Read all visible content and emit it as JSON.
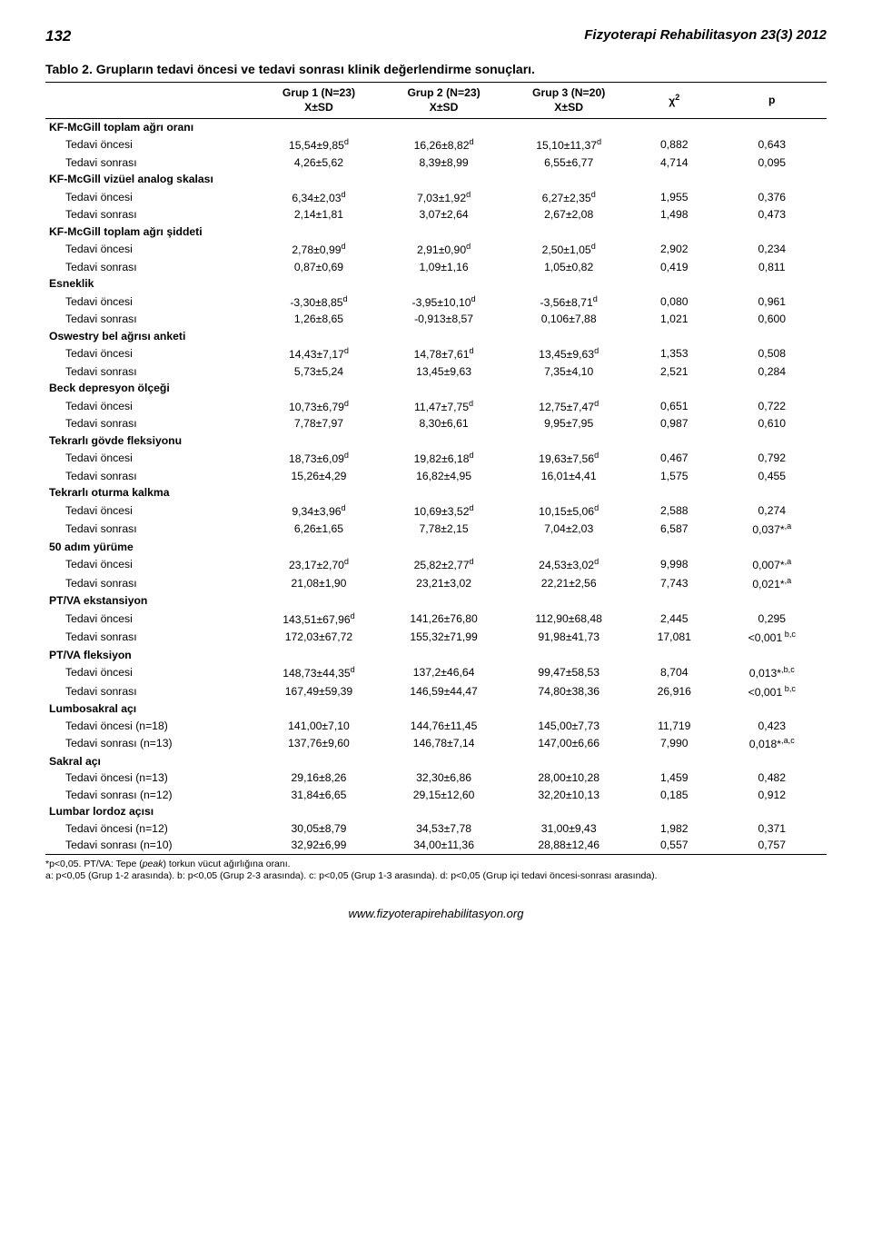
{
  "pageNumber": "132",
  "journal": "Fizyoterapi Rehabilitasyon 23(3) 2012",
  "tableTitle": "Tablo 2. Grupların tedavi öncesi ve tedavi sonrası klinik değerlendirme sonuçları.",
  "columns": {
    "g1_top": "Grup 1 (N=23)",
    "g1_bot": "X±SD",
    "g2_top": "Grup 2 (N=23)",
    "g2_bot": "X±SD",
    "g3_top": "Grup 3 (N=20)",
    "g3_bot": "X±SD",
    "chi": "χ",
    "chi_sup": "2",
    "p": "p"
  },
  "rows": [
    {
      "section": true,
      "label": "KF-McGill toplam ağrı oranı"
    },
    {
      "indent": true,
      "label": "Tedavi öncesi",
      "g1": "15,54±9,85",
      "g1s": "d",
      "g2": "16,26±8,82",
      "g2s": "d",
      "g3": "15,10±11,37",
      "g3s": "d",
      "chi": "0,882",
      "p": "0,643"
    },
    {
      "indent": true,
      "label": "Tedavi sonrası",
      "g1": "4,26±5,62",
      "g2": "8,39±8,99",
      "g3": "6,55±6,77",
      "chi": "4,714",
      "p": "0,095"
    },
    {
      "section": true,
      "label": "KF-McGill vizüel analog skalası"
    },
    {
      "indent": true,
      "label": "Tedavi öncesi",
      "g1": "6,34±2,03",
      "g1s": "d",
      "g2": "7,03±1,92",
      "g2s": "d",
      "g3": "6,27±2,35",
      "g3s": "d",
      "chi": "1,955",
      "p": "0,376"
    },
    {
      "indent": true,
      "label": "Tedavi sonrası",
      "g1": "2,14±1,81",
      "g2": "3,07±2,64",
      "g3": "2,67±2,08",
      "chi": "1,498",
      "p": "0,473"
    },
    {
      "section": true,
      "label": "KF-McGill toplam ağrı şiddeti"
    },
    {
      "indent": true,
      "label": "Tedavi öncesi",
      "g1": "2,78±0,99",
      "g1s": "d",
      "g2": "2,91±0,90",
      "g2s": "d",
      "g3": "2,50±1,05",
      "g3s": "d",
      "chi": "2,902",
      "p": "0,234"
    },
    {
      "indent": true,
      "label": "Tedavi sonrası",
      "g1": "0,87±0,69",
      "g2": "1,09±1,16",
      "g3": "1,05±0,82",
      "chi": "0,419",
      "p": "0,811"
    },
    {
      "section": true,
      "label": "Esneklik"
    },
    {
      "indent": true,
      "label": "Tedavi öncesi",
      "g1": "-3,30±8,85",
      "g1s": "d",
      "g2": "-3,95±10,10",
      "g2s": "d",
      "g3": "-3,56±8,71",
      "g3s": "d",
      "chi": "0,080",
      "p": "0,961"
    },
    {
      "indent": true,
      "label": "Tedavi sonrası",
      "g1": "1,26±8,65",
      "g2": "-0,913±8,57",
      "g3": "0,106±7,88",
      "chi": "1,021",
      "p": "0,600"
    },
    {
      "section": true,
      "label": "Oswestry bel ağrısı anketi"
    },
    {
      "indent": true,
      "label": "Tedavi öncesi",
      "g1": "14,43±7,17",
      "g1s": "d",
      "g2": "14,78±7,61",
      "g2s": "d",
      "g3": "13,45±9,63",
      "g3s": "d",
      "chi": "1,353",
      "p": "0,508"
    },
    {
      "indent": true,
      "label": "Tedavi sonrası",
      "g1": "5,73±5,24",
      "g2": "13,45±9,63",
      "g3": "7,35±4,10",
      "chi": "2,521",
      "p": "0,284"
    },
    {
      "section": true,
      "label": "Beck depresyon ölçeği"
    },
    {
      "indent": true,
      "label": "Tedavi öncesi",
      "g1": "10,73±6,79",
      "g1s": "d",
      "g2": "11,47±7,75",
      "g2s": "d",
      "g3": "12,75±7,47",
      "g3s": "d",
      "chi": "0,651",
      "p": "0,722"
    },
    {
      "indent": true,
      "label": "Tedavi sonrası",
      "g1": "7,78±7,97",
      "g2": "8,30±6,61",
      "g3": "9,95±7,95",
      "chi": "0,987",
      "p": "0,610"
    },
    {
      "section": true,
      "label": "Tekrarlı gövde fleksiyonu"
    },
    {
      "indent": true,
      "label": "Tedavi öncesi",
      "g1": "18,73±6,09",
      "g1s": "d",
      "g2": "19,82±6,18",
      "g2s": "d",
      "g3": "19,63±7,56",
      "g3s": "d",
      "chi": "0,467",
      "p": "0,792"
    },
    {
      "indent": true,
      "label": "Tedavi sonrası",
      "g1": "15,26±4,29",
      "g2": "16,82±4,95",
      "g3": "16,01±4,41",
      "chi": "1,575",
      "p": "0,455"
    },
    {
      "section": true,
      "label": "Tekrarlı oturma kalkma"
    },
    {
      "indent": true,
      "label": "Tedavi öncesi",
      "g1": "9,34±3,96",
      "g1s": "d",
      "g2": "10,69±3,52",
      "g2s": "d",
      "g3": "10,15±5,06",
      "g3s": "d",
      "chi": "2,588",
      "p": "0,274"
    },
    {
      "indent": true,
      "label": "Tedavi sonrası",
      "g1": "6,26±1,65",
      "g2": "7,78±2,15",
      "g3": "7,04±2,03",
      "chi": "6,587",
      "p": "0,037*",
      "ps": ",a"
    },
    {
      "section": true,
      "label": "50 adım yürüme"
    },
    {
      "indent": true,
      "label": "Tedavi öncesi",
      "g1": "23,17±2,70",
      "g1s": "d",
      "g2": "25,82±2,77",
      "g2s": "d",
      "g3": "24,53±3,02",
      "g3s": "d",
      "chi": "9,998",
      "p": "0,007*",
      "ps": ",a"
    },
    {
      "indent": true,
      "label": "Tedavi sonrası",
      "g1": "21,08±1,90",
      "g2": "23,21±3,02",
      "g3": "22,21±2,56",
      "chi": "7,743",
      "p": "0,021*",
      "ps": ",a"
    },
    {
      "section": true,
      "label": "PT/VA ekstansiyon"
    },
    {
      "indent": true,
      "label": "Tedavi öncesi",
      "g1": "143,51±67,96",
      "g1s": "d",
      "g2": "141,26±76,80",
      "g3": "112,90±68,48",
      "chi": "2,445",
      "p": "0,295"
    },
    {
      "indent": true,
      "label": "Tedavi sonrası",
      "g1": "172,03±67,72",
      "g2": "155,32±71,99",
      "g3": "91,98±41,73",
      "chi": "17,081",
      "p": "<0,001",
      "ps": " b,c"
    },
    {
      "section": true,
      "label": "PT/VA fleksiyon"
    },
    {
      "indent": true,
      "label": "Tedavi öncesi",
      "g1": "148,73±44,35",
      "g1s": "d",
      "g2": "137,2±46,64",
      "g3": "99,47±58,53",
      "chi": "8,704",
      "p": "0,013*",
      "ps": ",b,c"
    },
    {
      "indent": true,
      "label": "Tedavi sonrası",
      "g1": "167,49±59,39",
      "g2": "146,59±44,47",
      "g3": "74,80±38,36",
      "chi": "26,916",
      "p": "<0,001",
      "ps": " b,c"
    },
    {
      "section": true,
      "label": "Lumbosakral açı"
    },
    {
      "indent": true,
      "label": "Tedavi öncesi (n=18)",
      "g1": "141,00±7,10",
      "g2": "144,76±11,45",
      "g3": "145,00±7,73",
      "chi": "11,719",
      "p": "0,423"
    },
    {
      "indent": true,
      "label": "Tedavi sonrası (n=13)",
      "g1": "137,76±9,60",
      "g2": "146,78±7,14",
      "g3": "147,00±6,66",
      "chi": "7,990",
      "p": "0,018*",
      "ps": ",a,c"
    },
    {
      "section": true,
      "label": "Sakral açı"
    },
    {
      "indent": true,
      "label": "Tedavi öncesi (n=13)",
      "g1": "29,16±8,26",
      "g2": "32,30±6,86",
      "g3": "28,00±10,28",
      "chi": "1,459",
      "p": "0,482"
    },
    {
      "indent": true,
      "label": "Tedavi sonrası (n=12)",
      "g1": "31,84±6,65",
      "g2": "29,15±12,60",
      "g3": "32,20±10,13",
      "chi": "0,185",
      "p": "0,912"
    },
    {
      "section": true,
      "label": "Lumbar lordoz açısı"
    },
    {
      "indent": true,
      "label": "Tedavi öncesi (n=12)",
      "g1": "30,05±8,79",
      "g2": "34,53±7,78",
      "g3": "31,00±9,43",
      "chi": "1,982",
      "p": "0,371"
    },
    {
      "indent": true,
      "label": "Tedavi sonrası (n=10)",
      "g1": "32,92±6,99",
      "g2": "34,00±11,36",
      "g3": "28,88±12,46",
      "chi": "0,557",
      "p": "0,757"
    }
  ],
  "footnotes": [
    {
      "plain": "*p<0,05. PT/VA: Tepe (",
      "italic": "peak",
      "plain2": ") torkun vücut ağırlığına oranı."
    },
    {
      "plain": "a: p<0,05 (Grup 1-2 arasında). b: p<0,05 (Grup 2-3 arasında). c: p<0,05 (Grup 1-3 arasında). d: p<0,05 (Grup içi tedavi öncesi-sonrası arasında)."
    }
  ],
  "footer": "www.fizyoterapirehabilitasyon.org"
}
